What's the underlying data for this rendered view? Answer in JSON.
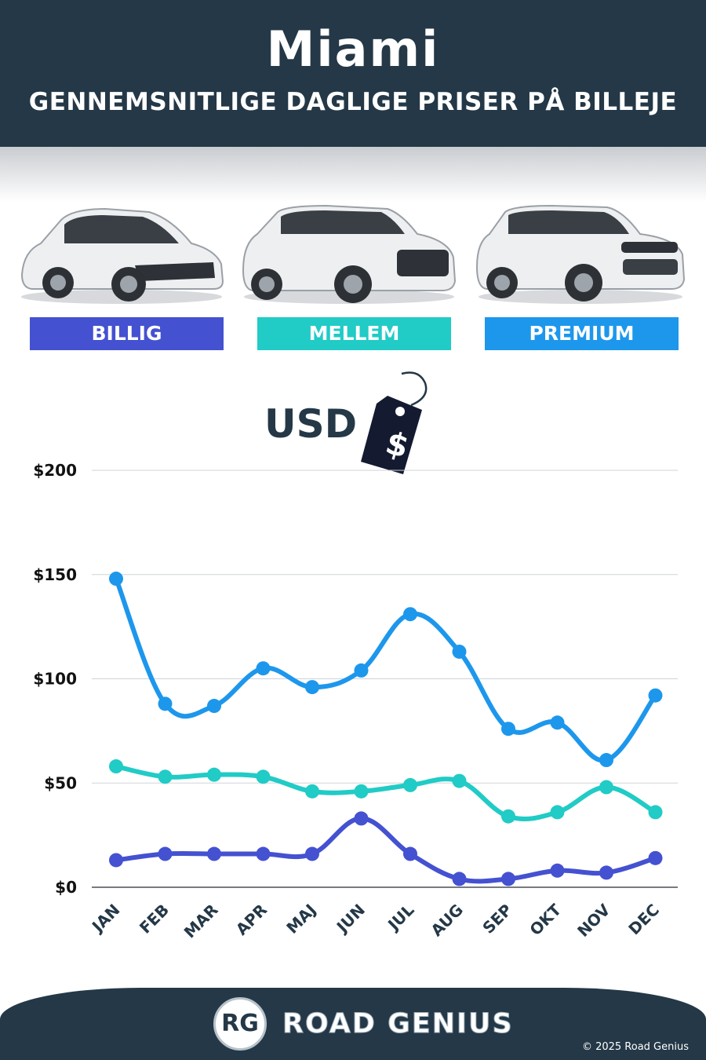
{
  "header": {
    "city": "Miami",
    "subtitle": "GENNEMSNITLIGE DAGLIGE PRISER PÅ BILLEJE"
  },
  "categories": [
    {
      "label": "BILLIG",
      "color": "#4451d1"
    },
    {
      "label": "MELLEM",
      "color": "#21cbc6"
    },
    {
      "label": "PREMIUM",
      "color": "#1d97ec"
    }
  ],
  "currency": {
    "label": "USD",
    "tag_symbol": "$",
    "icon": "price-tag-icon"
  },
  "chart_data": {
    "type": "line",
    "categories": [
      "JAN",
      "FEB",
      "MAR",
      "APR",
      "MAJ",
      "JUN",
      "JUL",
      "AUG",
      "SEP",
      "OKT",
      "NOV",
      "DEC"
    ],
    "series": [
      {
        "name": "PREMIUM",
        "color": "#1d97ec",
        "values": [
          148,
          88,
          87,
          105,
          96,
          104,
          131,
          113,
          76,
          79,
          61,
          92
        ]
      },
      {
        "name": "MELLEM",
        "color": "#21cbc6",
        "values": [
          58,
          53,
          54,
          53,
          46,
          46,
          49,
          51,
          34,
          36,
          48,
          36
        ]
      },
      {
        "name": "BILLIG",
        "color": "#4451d1",
        "values": [
          13,
          16,
          16,
          16,
          16,
          33,
          16,
          4,
          4,
          8,
          7,
          14
        ]
      }
    ],
    "yticks": [
      "$0",
      "$50",
      "$100",
      "$150",
      "$200"
    ],
    "ylim": [
      0,
      200
    ],
    "grid": true
  },
  "footer": {
    "logo": "RG",
    "brand": "ROAD GENIUS",
    "copyright": "© 2025 Road Genius"
  }
}
